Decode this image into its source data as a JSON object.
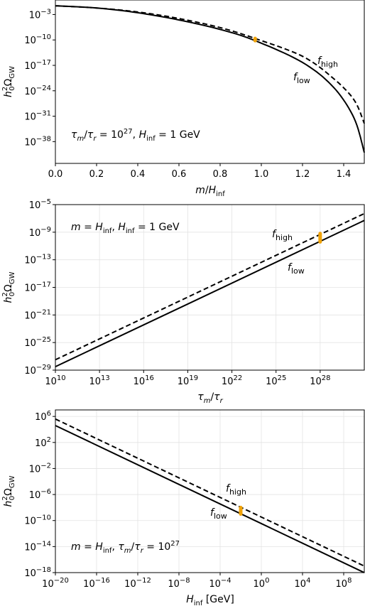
{
  "chart_data": [
    {
      "type": "line",
      "xlabel": "m/H_inf",
      "ylabel": "h0^2 Ω_GW",
      "xscale": "linear",
      "yscale": "log",
      "xlim": [
        0.0,
        1.5
      ],
      "ylim_log10": [
        -44,
        1
      ],
      "x_ticks": [
        0.0,
        0.2,
        0.4,
        0.6,
        0.8,
        1.0,
        1.2,
        1.4
      ],
      "x_tick_labels": [
        "0.0",
        "0.2",
        "0.4",
        "0.6",
        "0.8",
        "1.0",
        "1.2",
        "1.4"
      ],
      "y_ticks_log10": [
        -3,
        -10,
        -17,
        -24,
        -31,
        -38
      ],
      "grid": false,
      "annotation": "τm/τr = 10^27, H_inf = 1 GeV",
      "series": [
        {
          "name": "f_low",
          "style": "solid",
          "color": "#000000",
          "x": [
            0.0,
            0.2,
            0.4,
            0.6,
            0.8,
            0.97,
            1.2,
            1.35,
            1.45,
            1.5
          ],
          "y_log10": [
            -0.6,
            -1.2,
            -2.5,
            -4.5,
            -7.1,
            -10.2,
            -16.2,
            -23.0,
            -31.5,
            -41.0
          ]
        },
        {
          "name": "f_high",
          "style": "dashed",
          "color": "#000000",
          "x": [
            0.0,
            0.2,
            0.4,
            0.6,
            0.8,
            0.97,
            1.2,
            1.35,
            1.45,
            1.5
          ],
          "y_log10": [
            -0.6,
            -1.2,
            -2.3,
            -4.1,
            -6.6,
            -9.6,
            -14.5,
            -20.6,
            -26.5,
            -33.0
          ]
        }
      ],
      "markers": [
        {
          "x": 0.97,
          "y_log10_range": [
            -10.2,
            -9.6
          ],
          "color": "#f0a30a"
        }
      ]
    },
    {
      "type": "line",
      "xlabel": "τm/τr",
      "ylabel": "h0^2 Ω_GW",
      "xscale": "log",
      "yscale": "log",
      "xlim_log10": [
        10,
        31
      ],
      "ylim_log10": [
        -29,
        -5
      ],
      "x_ticks_log10": [
        10,
        13,
        16,
        19,
        22,
        25,
        28
      ],
      "y_ticks_log10": [
        -5,
        -9,
        -13,
        -17,
        -21,
        -25,
        -29
      ],
      "grid": true,
      "annotation": "m = H_inf, H_inf = 1 GeV",
      "series": [
        {
          "name": "f_low",
          "style": "solid",
          "color": "#000000",
          "x_log10": [
            10,
            31
          ],
          "y_log10": [
            -28.5,
            -7.3
          ]
        },
        {
          "name": "f_high",
          "style": "dashed",
          "color": "#000000",
          "x_log10": [
            10,
            31
          ],
          "y_log10": [
            -27.5,
            -6.3
          ]
        }
      ],
      "markers": [
        {
          "x_log10": 28,
          "y_log10_range": [
            -10.4,
            -9.2
          ],
          "color": "#f0a30a"
        }
      ]
    },
    {
      "type": "line",
      "xlabel": "H_inf [GeV]",
      "ylabel": "h0^2 Ω_GW",
      "xscale": "log",
      "yscale": "log",
      "xlim_log10": [
        -20,
        10
      ],
      "ylim_log10": [
        -18,
        7
      ],
      "x_ticks_log10": [
        -20,
        -16,
        -12,
        -8,
        -4,
        0,
        4,
        8
      ],
      "y_ticks_log10": [
        6,
        2,
        -2,
        -6,
        -10,
        -14,
        -18
      ],
      "grid": true,
      "annotation": "m = H_inf, τm/τr = 10^27",
      "series": [
        {
          "name": "f_low",
          "style": "solid",
          "color": "#000000",
          "x_log10": [
            -20,
            10
          ],
          "y_log10": [
            4.6,
            -18.0
          ]
        },
        {
          "name": "f_high",
          "style": "dashed",
          "color": "#000000",
          "x_log10": [
            -20,
            10
          ],
          "y_log10": [
            5.6,
            -17.0
          ]
        }
      ],
      "markers": [
        {
          "x_log10": -2,
          "y_log10_range": [
            -9.0,
            -8.0
          ],
          "color": "#f0a30a"
        }
      ]
    }
  ]
}
